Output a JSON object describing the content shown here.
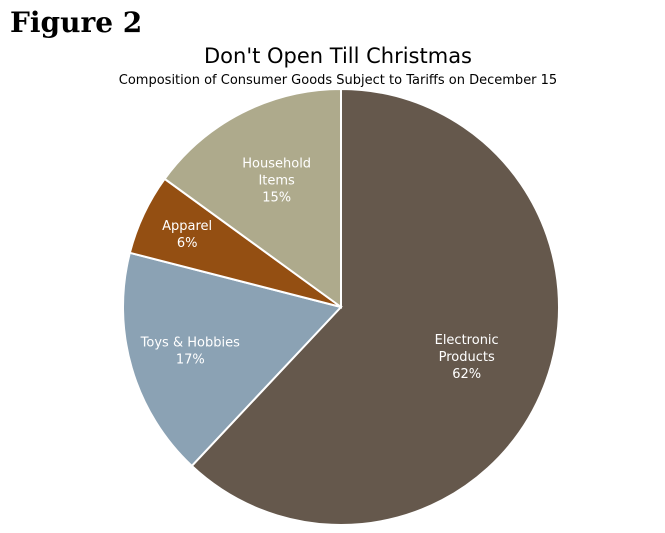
{
  "figure_label": "Figure 2",
  "chart_data": {
    "type": "pie",
    "title": "Don't Open Till Christmas",
    "subtitle": "Composition of Consumer Goods Subject to Tariffs on December 15",
    "slices": [
      {
        "name": "Electronic Products",
        "label_lines": [
          "Electronic",
          "Products"
        ],
        "value": 62,
        "value_label": "62%",
        "color": "#65584c"
      },
      {
        "name": "Toys & Hobbies",
        "label_lines": [
          "Toys & Hobbies"
        ],
        "value": 17,
        "value_label": "17%",
        "color": "#8ba2b4"
      },
      {
        "name": "Apparel",
        "label_lines": [
          "Apparel"
        ],
        "value": 6,
        "value_label": "6%",
        "color": "#944f12"
      },
      {
        "name": "Household Items",
        "label_lines": [
          "Household",
          "Items"
        ],
        "value": 15,
        "value_label": "15%",
        "color": "#aeaa8c"
      }
    ],
    "start_angle": "12 o'clock",
    "direction": "clockwise",
    "legend": "none"
  }
}
